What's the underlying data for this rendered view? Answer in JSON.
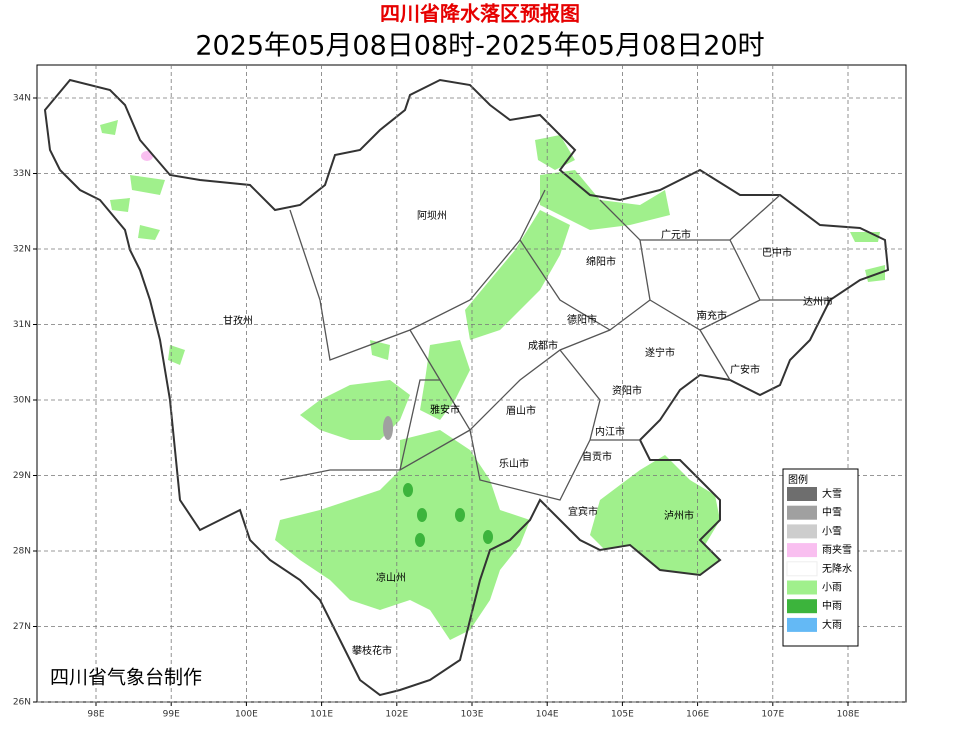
{
  "header": {
    "title": "四川省降水落区预报图",
    "subtitle": "2025年05月08日08时-2025年05月08日20时"
  },
  "map": {
    "x_ticks": [
      "98E",
      "99E",
      "100E",
      "101E",
      "102E",
      "103E",
      "104E",
      "105E",
      "106E",
      "107E",
      "108E"
    ],
    "y_ticks": [
      "34N",
      "33N",
      "32N",
      "31N",
      "30N",
      "29N",
      "28N",
      "27N",
      "26N"
    ],
    "places": [
      "阿坝州",
      "广元市",
      "巴中市",
      "绵阳市",
      "甘孜州",
      "德阳市",
      "南充市",
      "达州市",
      "成都市",
      "遂宁市",
      "广安市",
      "雅安市",
      "眉山市",
      "资阳市",
      "内江市",
      "乐山市",
      "自贡市",
      "宜宾市",
      "泸州市",
      "凉山州",
      "攀枝花市"
    ]
  },
  "legend": {
    "title": "图例",
    "items": [
      {
        "label": "大雪",
        "color": "#6e6e6e"
      },
      {
        "label": "中雪",
        "color": "#a0a0a0"
      },
      {
        "label": "小雪",
        "color": "#cdcdcd"
      },
      {
        "label": "雨夹雪",
        "color": "#f9bff0"
      },
      {
        "label": "无降水",
        "color": "#ffffff"
      },
      {
        "label": "小雨",
        "color": "#a0f08c"
      },
      {
        "label": "中雨",
        "color": "#3cb43c"
      },
      {
        "label": "大雨",
        "color": "#64b9f5"
      }
    ]
  },
  "credit": "四川省气象台制作"
}
